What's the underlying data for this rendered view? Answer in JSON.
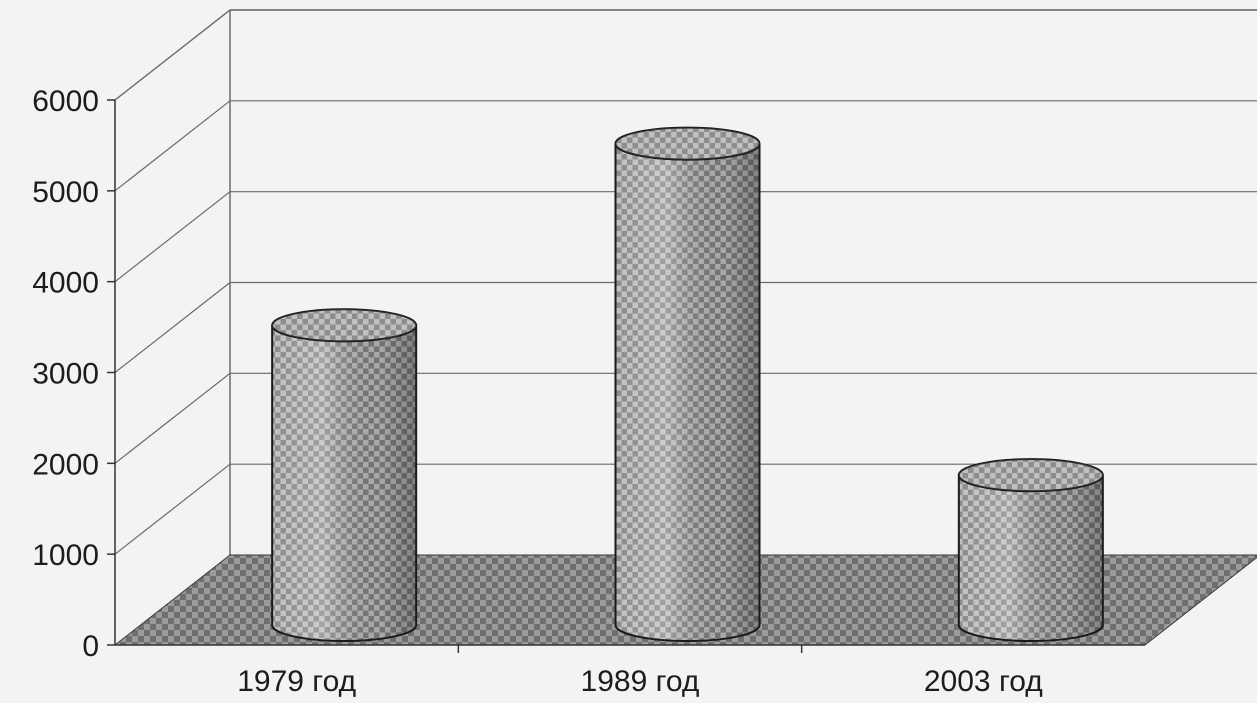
{
  "chart_data": {
    "type": "bar",
    "style": "3d-cylinder",
    "categories": [
      "1979 год",
      "1989 год",
      "2003 год"
    ],
    "values": [
      3300,
      5300,
      1650
    ],
    "y_ticks": [
      "0",
      "1000",
      "2000",
      "3000",
      "4000",
      "5000",
      "6000"
    ],
    "ylim": [
      0,
      6000
    ],
    "grid": true,
    "legend": "none",
    "colors": {
      "bar_fill": "#8f8f8f",
      "floor_fill": "#7c7c7c",
      "grid": "#6a6a6a",
      "background": "#f3f3f1"
    }
  }
}
